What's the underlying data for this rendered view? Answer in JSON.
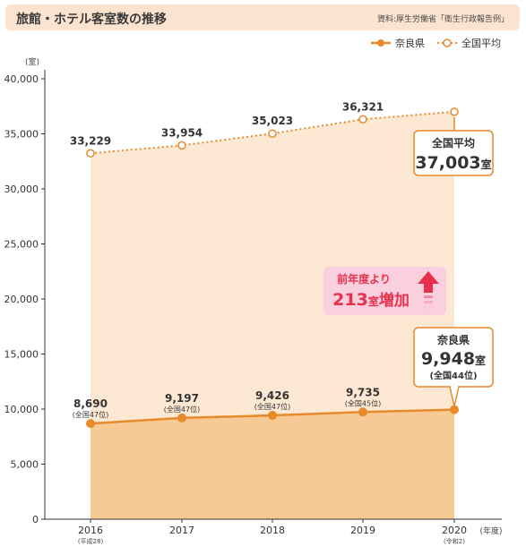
{
  "header": {
    "title": "旅館・ホテル客室数の推移",
    "source": "資料:厚生労働省「衛生行政報告例」"
  },
  "colors": {
    "header_bg": "#fbe3cf",
    "nara_line": "#e8892a",
    "national_line": "#e8892a",
    "nara_fill": "#f7c995",
    "national_fill": "#fde9d3",
    "badge_pink": "#fbd0de",
    "badge_text": "#e8304c"
  },
  "chart_data": {
    "type": "area",
    "y_unit": "(室)",
    "x_unit": "(年度)",
    "ylim": [
      0,
      40000
    ],
    "yticks": [
      "0",
      "5,000",
      "10,000",
      "15,000",
      "20,000",
      "25,000",
      "30,000",
      "35,000",
      "40,000"
    ],
    "x": [
      "2016",
      "2017",
      "2018",
      "2019",
      "2020"
    ],
    "x_sub": [
      "(平成28)",
      "",
      "",
      "",
      "(令和2)"
    ],
    "series": [
      {
        "name": "全国平均",
        "values": [
          33229,
          33954,
          35023,
          36321,
          37003
        ],
        "labels": [
          "33,229",
          "33,954",
          "35,023",
          "36,321",
          ""
        ],
        "style": "dotted"
      },
      {
        "name": "奈良県",
        "values": [
          8690,
          9197,
          9426,
          9735,
          9948
        ],
        "labels": [
          "8,690",
          "9,197",
          "9,426",
          "9,735",
          ""
        ],
        "sublabels": [
          "(全国47位)",
          "(全国47位)",
          "(全国47位)",
          "(全国45位)",
          ""
        ],
        "style": "solid"
      }
    ],
    "legend": [
      "奈良県",
      "全国平均"
    ],
    "legend_position": "top-right",
    "callout_national": {
      "line1": "全国平均",
      "value": "37,003",
      "unit": "室"
    },
    "callout_nara": {
      "line1": "奈良県",
      "value": "9,948",
      "unit": "室",
      "rank": "(全国44位)"
    },
    "badge": {
      "line1": "前年度より",
      "value": "213",
      "unit": "室",
      "suffix": "増加"
    }
  }
}
